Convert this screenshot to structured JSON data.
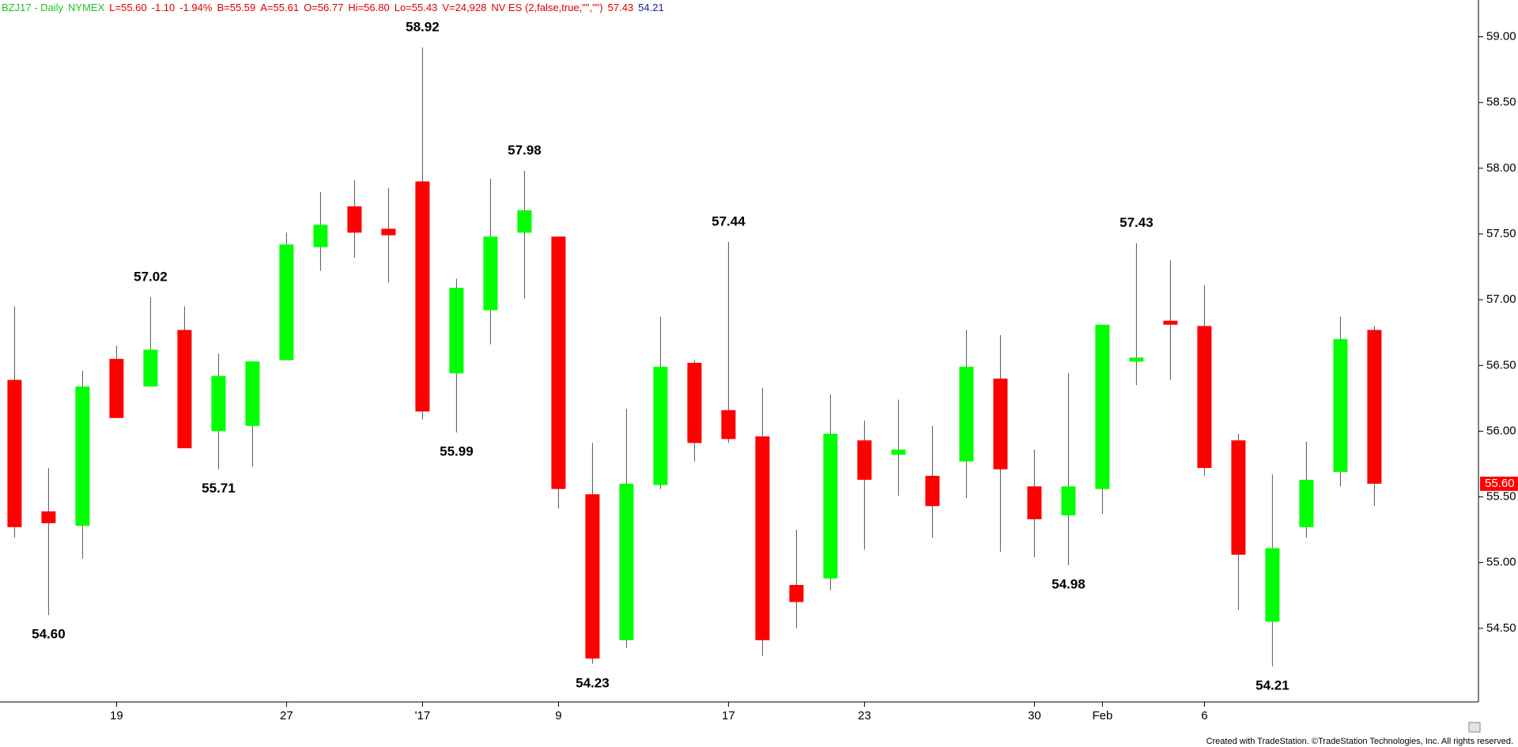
{
  "header": {
    "items": [
      "BZJ17 - Daily",
      "NYMEX",
      "L=55.60",
      "-1.10",
      "-1.94%",
      "B=55.59",
      "A=55.61",
      "O=56.77",
      "Hi=56.80",
      "Lo=55.43",
      "V=24,928",
      "NV ES (2,false,true,\"\",\"\")",
      "57.43",
      "54.21"
    ],
    "colors": [
      "#22c322",
      "#22c322",
      "#e00000",
      "#e00000",
      "#e00000",
      "#e00000",
      "#e00000",
      "#e00000",
      "#e00000",
      "#e00000",
      "#e00000",
      "#e00000",
      "#e00000",
      "#1a1aa0"
    ]
  },
  "footer": "Created with TradeStation. ©TradeStation Technologies, Inc. All rights reserved.",
  "chart_data": {
    "type": "candlestick",
    "categories": [
      null,
      null,
      null,
      "19",
      null,
      null,
      null,
      null,
      "27",
      null,
      null,
      null,
      "'17",
      null,
      null,
      null,
      "9",
      null,
      null,
      null,
      null,
      "17",
      null,
      null,
      null,
      "23",
      null,
      null,
      null,
      null,
      "30",
      null,
      "Feb",
      null,
      null,
      "6",
      null,
      null,
      null,
      null,
      null
    ],
    "open": [
      56.39,
      55.39,
      55.28,
      56.55,
      56.34,
      56.77,
      56.0,
      56.04,
      56.54,
      57.4,
      57.71,
      57.54,
      57.9,
      56.44,
      56.92,
      57.51,
      57.48,
      55.52,
      54.41,
      55.59,
      56.52,
      56.16,
      55.96,
      54.83,
      54.88,
      55.93,
      55.82,
      55.66,
      55.77,
      56.4,
      55.58,
      55.36,
      55.56,
      56.53,
      56.84,
      56.8,
      55.93,
      54.55,
      55.27,
      55.69,
      56.77
    ],
    "high": [
      56.95,
      55.72,
      56.46,
      56.65,
      57.02,
      56.95,
      56.59,
      56.53,
      57.51,
      57.82,
      57.91,
      57.85,
      58.92,
      57.16,
      57.92,
      57.98,
      57.48,
      55.91,
      56.17,
      56.87,
      56.54,
      57.44,
      56.33,
      55.25,
      56.28,
      56.08,
      56.24,
      56.04,
      56.77,
      56.73,
      55.86,
      56.44,
      56.81,
      57.43,
      57.3,
      57.11,
      55.98,
      55.67,
      55.92,
      56.87,
      56.8
    ],
    "low": [
      55.19,
      54.6,
      55.03,
      56.1,
      56.34,
      55.87,
      55.71,
      55.73,
      56.54,
      57.22,
      57.32,
      57.13,
      56.09,
      55.99,
      56.66,
      57.01,
      55.41,
      54.23,
      54.35,
      55.56,
      55.77,
      55.91,
      54.29,
      54.5,
      54.79,
      55.1,
      55.51,
      55.19,
      55.49,
      55.08,
      55.04,
      54.98,
      55.37,
      56.35,
      56.39,
      55.66,
      54.64,
      54.21,
      55.19,
      55.58,
      55.43
    ],
    "close": [
      55.27,
      55.3,
      56.34,
      56.1,
      56.62,
      55.87,
      56.42,
      56.53,
      57.42,
      57.57,
      57.51,
      57.49,
      56.15,
      57.09,
      57.48,
      57.68,
      55.56,
      54.27,
      55.6,
      56.49,
      55.91,
      55.94,
      54.41,
      54.7,
      55.98,
      55.63,
      55.86,
      55.43,
      56.49,
      55.71,
      55.33,
      55.58,
      56.81,
      56.56,
      56.81,
      55.72,
      55.06,
      55.11,
      55.63,
      56.7,
      55.6
    ],
    "up_color": "#00ff00",
    "down_color": "#ff0000",
    "pivots": {
      "candles": [
        1,
        4,
        6,
        12,
        13,
        15,
        17,
        21,
        31,
        33,
        37
      ],
      "values": [
        54.6,
        57.02,
        55.71,
        58.92,
        55.99,
        57.98,
        54.23,
        57.44,
        54.98,
        57.43,
        54.21
      ],
      "value_labels": [
        "54.60",
        "57.02",
        "55.71",
        "58.92",
        "55.99",
        "57.98",
        "54.23",
        "57.44",
        "54.98",
        "57.43",
        "54.21"
      ]
    },
    "last_price_label": "55.60",
    "ylim": [
      53.94,
      59.28
    ],
    "yticks": [
      {
        "value": 54.5,
        "label": "54.50"
      },
      {
        "value": 55,
        "label": "55.00"
      },
      {
        "value": 55.5,
        "label": "55.50"
      },
      {
        "value": 56,
        "label": "56.00"
      },
      {
        "value": 56.5,
        "label": "56.50"
      },
      {
        "value": 57,
        "label": "57.00"
      },
      {
        "value": 57.5,
        "label": "57.50"
      },
      {
        "value": 58,
        "label": "58.00"
      },
      {
        "value": 58.5,
        "label": "58.50"
      },
      {
        "value": 59,
        "label": "59.00"
      }
    ]
  }
}
